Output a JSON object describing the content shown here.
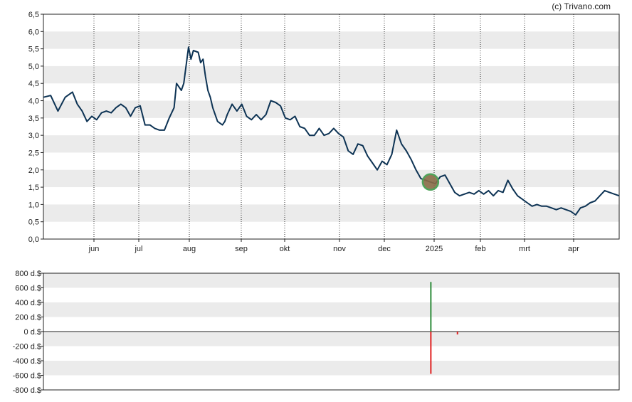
{
  "credit": "(c) Trivano.com",
  "colors": {
    "price_line": "#0d3354",
    "band": "#ebebeb",
    "grid": "#444444",
    "marker_fill": "#8a6d47",
    "marker_stroke": "#4fa35a",
    "buy": "#2e8b3a",
    "sell": "#e02020"
  },
  "chart_data": [
    {
      "type": "line",
      "title": "",
      "xlabel": "",
      "ylabel": "",
      "ylim": [
        0,
        6.5
      ],
      "yticks": [
        "0,0",
        "0,5",
        "1,0",
        "1,5",
        "2,0",
        "2,5",
        "3,0",
        "3,5",
        "4,0",
        "4,5",
        "5,0",
        "5,5",
        "6,0",
        "6,5"
      ],
      "xticks": [
        "jun",
        "jul",
        "aug",
        "sep",
        "okt",
        "nov",
        "dec",
        "2025",
        "feb",
        "mrt",
        "apr"
      ],
      "grid": "vertical dotted at month starts, alternating horizontal bands",
      "series": [
        {
          "values": [
            [
              0,
              4.1
            ],
            [
              3,
              4.15
            ],
            [
              6,
              3.7
            ],
            [
              9,
              4.1
            ],
            [
              12,
              4.25
            ],
            [
              14,
              3.9
            ],
            [
              16,
              3.7
            ],
            [
              18,
              3.4
            ],
            [
              20,
              3.55
            ],
            [
              22,
              3.45
            ],
            [
              24,
              3.65
            ],
            [
              26,
              3.7
            ],
            [
              28,
              3.65
            ],
            [
              30,
              3.8
            ],
            [
              32,
              3.9
            ],
            [
              34,
              3.8
            ],
            [
              36,
              3.55
            ],
            [
              38,
              3.8
            ],
            [
              40,
              3.85
            ],
            [
              42,
              3.3
            ],
            [
              44,
              3.3
            ],
            [
              46,
              3.2
            ],
            [
              48,
              3.15
            ],
            [
              50,
              3.15
            ],
            [
              52,
              3.5
            ],
            [
              54,
              3.8
            ],
            [
              55,
              4.5
            ],
            [
              57,
              4.3
            ],
            [
              58,
              4.5
            ],
            [
              60,
              5.55
            ],
            [
              61,
              5.2
            ],
            [
              62,
              5.45
            ],
            [
              64,
              5.4
            ],
            [
              65,
              5.1
            ],
            [
              66,
              5.2
            ],
            [
              67,
              4.7
            ],
            [
              68,
              4.3
            ],
            [
              69,
              4.1
            ],
            [
              70,
              3.8
            ],
            [
              72,
              3.4
            ],
            [
              74,
              3.3
            ],
            [
              75,
              3.4
            ],
            [
              76,
              3.6
            ],
            [
              78,
              3.9
            ],
            [
              80,
              3.7
            ],
            [
              82,
              3.9
            ],
            [
              84,
              3.55
            ],
            [
              86,
              3.45
            ],
            [
              88,
              3.6
            ],
            [
              90,
              3.45
            ],
            [
              92,
              3.6
            ],
            [
              94,
              4.0
            ],
            [
              96,
              3.95
            ],
            [
              98,
              3.85
            ],
            [
              100,
              3.5
            ],
            [
              102,
              3.45
            ],
            [
              104,
              3.55
            ],
            [
              106,
              3.25
            ],
            [
              108,
              3.2
            ],
            [
              110,
              3.0
            ],
            [
              112,
              3.0
            ],
            [
              114,
              3.2
            ],
            [
              116,
              3.0
            ],
            [
              118,
              3.05
            ],
            [
              120,
              3.2
            ],
            [
              122,
              3.05
            ],
            [
              124,
              2.95
            ],
            [
              126,
              2.55
            ],
            [
              128,
              2.45
            ],
            [
              130,
              2.75
            ],
            [
              132,
              2.7
            ],
            [
              134,
              2.4
            ],
            [
              136,
              2.2
            ],
            [
              138,
              2.0
            ],
            [
              140,
              2.25
            ],
            [
              142,
              2.15
            ],
            [
              144,
              2.45
            ],
            [
              146,
              3.15
            ],
            [
              148,
              2.75
            ],
            [
              150,
              2.55
            ],
            [
              152,
              2.3
            ],
            [
              154,
              2.0
            ],
            [
              156,
              1.75
            ],
            [
              158,
              1.7
            ],
            [
              160,
              1.65
            ],
            [
              162,
              1.6
            ],
            [
              164,
              1.8
            ],
            [
              166,
              1.85
            ],
            [
              168,
              1.6
            ],
            [
              170,
              1.35
            ],
            [
              172,
              1.25
            ],
            [
              174,
              1.3
            ],
            [
              176,
              1.35
            ],
            [
              178,
              1.3
            ],
            [
              180,
              1.4
            ],
            [
              182,
              1.3
            ],
            [
              184,
              1.4
            ],
            [
              186,
              1.25
            ],
            [
              188,
              1.4
            ],
            [
              190,
              1.35
            ],
            [
              192,
              1.7
            ],
            [
              194,
              1.45
            ],
            [
              196,
              1.25
            ],
            [
              198,
              1.15
            ],
            [
              200,
              1.05
            ],
            [
              202,
              0.95
            ],
            [
              204,
              1.0
            ],
            [
              206,
              0.95
            ],
            [
              208,
              0.95
            ],
            [
              210,
              0.9
            ],
            [
              212,
              0.85
            ],
            [
              214,
              0.9
            ],
            [
              216,
              0.85
            ],
            [
              218,
              0.8
            ],
            [
              220,
              0.7
            ],
            [
              222,
              0.9
            ],
            [
              224,
              0.95
            ],
            [
              226,
              1.05
            ],
            [
              228,
              1.1
            ],
            [
              230,
              1.25
            ],
            [
              232,
              1.4
            ],
            [
              234,
              1.35
            ],
            [
              236,
              1.3
            ],
            [
              238,
              1.25
            ]
          ]
        }
      ],
      "marker": {
        "x": 160,
        "y": 1.65
      }
    },
    {
      "type": "bar",
      "title": "",
      "xlabel": "",
      "ylabel": "",
      "ylim": [
        -800,
        800
      ],
      "yticks": [
        "800 d.$",
        "600 d.$",
        "400 d.$",
        "200 d.$",
        "0 d.$",
        "-200 d.$",
        "-400 d.$",
        "-600 d.$",
        "-800 d.$"
      ],
      "grid": "alternating horizontal bands, zero line",
      "series": [
        {
          "values": [
            {
              "x": 160,
              "value": 680
            },
            {
              "x": 160,
              "value": -580
            },
            {
              "x": 171,
              "value": -40
            }
          ]
        }
      ]
    }
  ]
}
